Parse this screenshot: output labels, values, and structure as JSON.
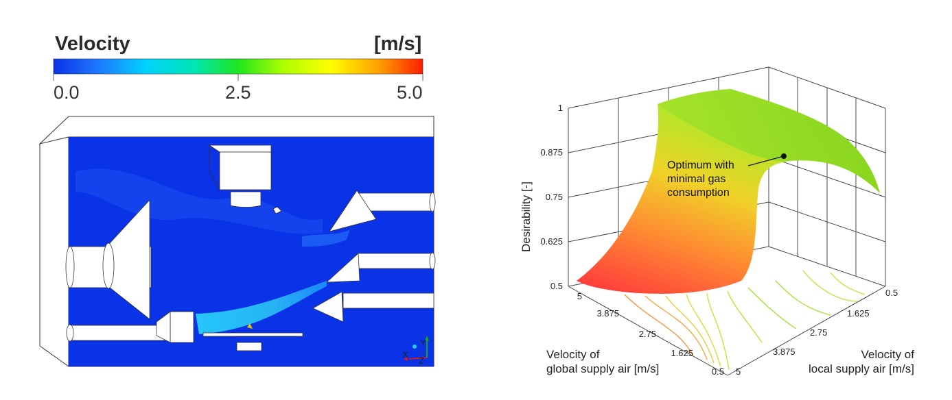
{
  "colorbar": {
    "title": "Velocity",
    "unit": "[m/s]",
    "ticks": [
      "0.0",
      "2.5",
      "5.0"
    ],
    "colors": [
      "#0a32e6",
      "#1e78ff",
      "#00d2ff",
      "#00e6b4",
      "#1ee61e",
      "#aaff00",
      "#ffff00",
      "#ffa000",
      "#ff1e00"
    ]
  },
  "triad": {
    "x": "X",
    "y": "Y",
    "z": "Z"
  },
  "chart_data": {
    "type": "surface",
    "ylabel": "Desirability [-]",
    "xlabel": "Velocity of\nglobal supply air [m/s]",
    "zlabel": "Velocity of\nlocal supply air [m/s]",
    "y_ticks": [
      "0.5",
      "0.625",
      "0.75",
      "0.875",
      "1"
    ],
    "global_ticks": [
      "5",
      "3.875",
      "2.75",
      "1.625",
      "0.5"
    ],
    "local_ticks": [
      "0.5",
      "1.625",
      "2.75",
      "3.875",
      "5"
    ],
    "ylim": [
      0.5,
      1
    ],
    "global_range": [
      0.5,
      5
    ],
    "local_range": [
      0.5,
      5
    ],
    "annotation": "Optimum with\nminimal gas\nconsumption",
    "surface_colors": [
      "#ff3c3c",
      "#ff8c32",
      "#f0d228",
      "#b4e628",
      "#8cdc28"
    ]
  }
}
